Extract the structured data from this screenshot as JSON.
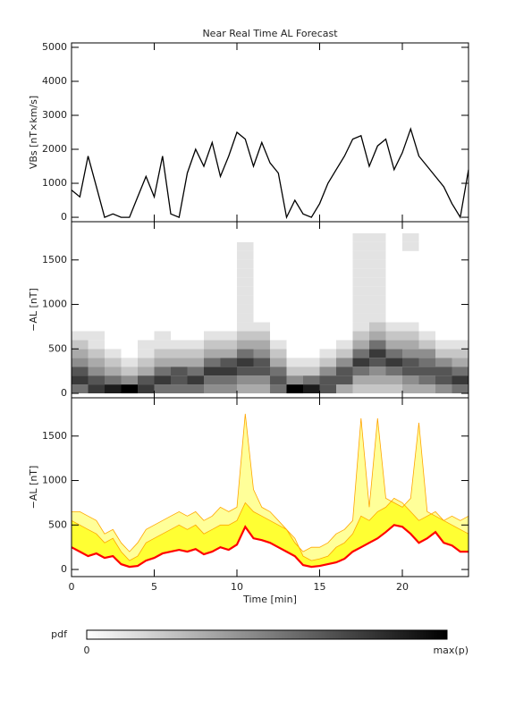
{
  "chart_data": [
    {
      "type": "line",
      "title": "Near Real Time AL Forecast",
      "ylabel": "VBs [nT×km/s]",
      "xlim": [
        0,
        24
      ],
      "xticks": [
        0,
        5,
        10,
        15,
        20
      ],
      "ylim": [
        -130,
        5130
      ],
      "yticks": [
        0,
        1000,
        2000,
        3000,
        4000,
        5000
      ],
      "color": "#000000",
      "x": [
        0,
        0.5,
        1,
        1.5,
        2,
        2.5,
        3,
        3.5,
        4,
        4.5,
        5,
        5.5,
        6,
        6.5,
        7,
        7.5,
        8,
        8.5,
        9,
        9.5,
        10,
        10.5,
        11,
        11.5,
        12,
        12.5,
        13,
        13.5,
        14,
        14.5,
        15,
        15.5,
        16,
        16.5,
        17,
        17.5,
        18,
        18.5,
        19,
        19.5,
        20,
        20.5,
        21,
        21.5,
        22,
        22.5,
        23,
        23.5,
        24
      ],
      "values": [
        800,
        600,
        1800,
        900,
        0,
        100,
        0,
        0,
        600,
        1200,
        600,
        1800,
        100,
        0,
        1300,
        2000,
        1500,
        2200,
        1200,
        1800,
        2500,
        2300,
        1500,
        2200,
        1600,
        1300,
        0,
        500,
        100,
        0,
        400,
        1000,
        1400,
        1800,
        2300,
        2400,
        1500,
        2100,
        2300,
        1400,
        1900,
        2600,
        1800,
        1500,
        1200,
        900,
        400,
        0,
        1400
      ]
    },
    {
      "type": "heatmap",
      "ylabel": "−AL [nT]",
      "xlim": [
        0,
        24
      ],
      "xticks": [
        0,
        5,
        10,
        15,
        20
      ],
      "ylim": [
        -50,
        1930
      ],
      "yticks": [
        0,
        500,
        1000,
        1500
      ],
      "x_bins": [
        0,
        1,
        2,
        3,
        4,
        5,
        6,
        7,
        8,
        9,
        10,
        11,
        12,
        13,
        14,
        15,
        16,
        17,
        18,
        19,
        20,
        21,
        22,
        23,
        24
      ],
      "y_bins": [
        0,
        100,
        200,
        300,
        400,
        500,
        600,
        700,
        800,
        900,
        1000,
        1100,
        1200,
        1300,
        1400,
        1500,
        1600,
        1700,
        1800
      ],
      "z": [
        [
          0.5,
          0.7,
          0.6,
          0.4,
          0.3,
          0.2,
          0.1,
          0,
          0,
          0,
          0,
          0,
          0,
          0,
          0,
          0,
          0,
          0
        ],
        [
          0.7,
          0.6,
          0.4,
          0.3,
          0.2,
          0.1,
          0.1,
          0,
          0,
          0,
          0,
          0,
          0,
          0,
          0,
          0,
          0,
          0
        ],
        [
          0.8,
          0.5,
          0.3,
          0.2,
          0.1,
          0,
          0,
          0,
          0,
          0,
          0,
          0,
          0,
          0,
          0,
          0,
          0,
          0
        ],
        [
          0.9,
          0.4,
          0.2,
          0.1,
          0,
          0,
          0,
          0,
          0,
          0,
          0,
          0,
          0,
          0,
          0,
          0,
          0,
          0
        ],
        [
          0.7,
          0.6,
          0.3,
          0.2,
          0.1,
          0.1,
          0,
          0,
          0,
          0,
          0,
          0,
          0,
          0,
          0,
          0,
          0,
          0
        ],
        [
          0.5,
          0.7,
          0.5,
          0.3,
          0.2,
          0.1,
          0.1,
          0,
          0,
          0,
          0,
          0,
          0,
          0,
          0,
          0,
          0,
          0
        ],
        [
          0.5,
          0.6,
          0.6,
          0.3,
          0.2,
          0.1,
          0,
          0,
          0,
          0,
          0,
          0,
          0,
          0,
          0,
          0,
          0,
          0
        ],
        [
          0.5,
          0.7,
          0.5,
          0.3,
          0.2,
          0.1,
          0,
          0,
          0,
          0,
          0,
          0,
          0,
          0,
          0,
          0,
          0,
          0
        ],
        [
          0.4,
          0.5,
          0.7,
          0.5,
          0.3,
          0.2,
          0.1,
          0,
          0,
          0,
          0,
          0,
          0,
          0,
          0,
          0,
          0,
          0
        ],
        [
          0.4,
          0.5,
          0.7,
          0.6,
          0.3,
          0.2,
          0.1,
          0,
          0,
          0,
          0,
          0,
          0,
          0,
          0,
          0,
          0,
          0
        ],
        [
          0.3,
          0.4,
          0.6,
          0.7,
          0.5,
          0.3,
          0.2,
          0.1,
          0.1,
          0.1,
          0.1,
          0.1,
          0.1,
          0.1,
          0.1,
          0.1,
          0.1,
          0
        ],
        [
          0.3,
          0.4,
          0.6,
          0.6,
          0.4,
          0.3,
          0.2,
          0.1,
          0,
          0,
          0,
          0,
          0,
          0,
          0,
          0,
          0,
          0
        ],
        [
          0.5,
          0.6,
          0.5,
          0.3,
          0.2,
          0.1,
          0,
          0,
          0,
          0,
          0,
          0,
          0,
          0,
          0,
          0,
          0,
          0
        ],
        [
          0.9,
          0.4,
          0.2,
          0.1,
          0,
          0,
          0,
          0,
          0,
          0,
          0,
          0,
          0,
          0,
          0,
          0,
          0,
          0
        ],
        [
          0.8,
          0.5,
          0.2,
          0.1,
          0,
          0,
          0,
          0,
          0,
          0,
          0,
          0,
          0,
          0,
          0,
          0,
          0,
          0
        ],
        [
          0.6,
          0.6,
          0.4,
          0.2,
          0.1,
          0,
          0,
          0,
          0,
          0,
          0,
          0,
          0,
          0,
          0,
          0,
          0,
          0
        ],
        [
          0.3,
          0.6,
          0.6,
          0.4,
          0.2,
          0.1,
          0,
          0,
          0,
          0,
          0,
          0,
          0,
          0,
          0,
          0,
          0,
          0
        ],
        [
          0.2,
          0.3,
          0.5,
          0.7,
          0.5,
          0.3,
          0.2,
          0.1,
          0.1,
          0.1,
          0.1,
          0.1,
          0.1,
          0.1,
          0.1,
          0.1,
          0.1,
          0.1
        ],
        [
          0.2,
          0.3,
          0.4,
          0.6,
          0.7,
          0.5,
          0.3,
          0.2,
          0.1,
          0.1,
          0.1,
          0.1,
          0.1,
          0.1,
          0.1,
          0.1,
          0.1,
          0.1
        ],
        [
          0.2,
          0.3,
          0.5,
          0.7,
          0.5,
          0.3,
          0.2,
          0.1,
          0,
          0,
          0,
          0,
          0,
          0,
          0,
          0,
          0,
          0
        ],
        [
          0.3,
          0.4,
          0.6,
          0.6,
          0.4,
          0.3,
          0.2,
          0.1,
          0,
          0,
          0,
          0,
          0,
          0,
          0,
          0,
          0.1,
          0.1
        ],
        [
          0.3,
          0.5,
          0.6,
          0.5,
          0.4,
          0.2,
          0.1,
          0,
          0,
          0,
          0,
          0,
          0,
          0,
          0,
          0,
          0,
          0
        ],
        [
          0.4,
          0.6,
          0.6,
          0.4,
          0.2,
          0.1,
          0,
          0,
          0,
          0,
          0,
          0,
          0,
          0,
          0,
          0,
          0,
          0
        ],
        [
          0.5,
          0.7,
          0.5,
          0.3,
          0.2,
          0.1,
          0,
          0,
          0,
          0,
          0,
          0,
          0,
          0,
          0,
          0,
          0,
          0
        ]
      ]
    },
    {
      "type": "band",
      "ylabel": "−AL [nT]",
      "xlabel": "Time [min]",
      "xlim": [
        0,
        24
      ],
      "xticks": [
        0,
        5,
        10,
        15,
        20
      ],
      "ylim": [
        -80,
        1930
      ],
      "yticks": [
        0,
        500,
        1000,
        1500
      ],
      "x": [
        0,
        0.5,
        1,
        1.5,
        2,
        2.5,
        3,
        3.5,
        4,
        4.5,
        5,
        5.5,
        6,
        6.5,
        7,
        7.5,
        8,
        8.5,
        9,
        9.5,
        10,
        10.5,
        11,
        11.5,
        12,
        12.5,
        13,
        13.5,
        14,
        14.5,
        15,
        15.5,
        16,
        16.5,
        17,
        17.5,
        18,
        18.5,
        19,
        19.5,
        20,
        20.5,
        21,
        21.5,
        22,
        22.5,
        23,
        23.5,
        24
      ],
      "color": "#ff0000",
      "values": [
        250,
        200,
        150,
        180,
        130,
        150,
        60,
        30,
        40,
        100,
        130,
        180,
        200,
        220,
        200,
        230,
        170,
        200,
        250,
        220,
        280,
        480,
        350,
        330,
        300,
        250,
        200,
        150,
        50,
        30,
        40,
        60,
        80,
        120,
        200,
        250,
        300,
        350,
        420,
        500,
        480,
        400,
        300,
        350,
        420,
        300,
        270,
        200,
        200
      ],
      "bands": [
        {
          "color": "#ffff33",
          "values": [
            550,
            500,
            450,
            400,
            300,
            350,
            200,
            100,
            150,
            300,
            350,
            400,
            450,
            500,
            450,
            500,
            400,
            450,
            500,
            500,
            550,
            750,
            650,
            600,
            550,
            500,
            450,
            350,
            150,
            100,
            120,
            150,
            250,
            300,
            400,
            600,
            550,
            650,
            700,
            800,
            750,
            650,
            550,
            600,
            650,
            550,
            500,
            450,
            400
          ]
        },
        {
          "color": "#ffff99",
          "edge": "#ffa500",
          "values": [
            650,
            650,
            600,
            550,
            400,
            450,
            300,
            200,
            300,
            450,
            500,
            550,
            600,
            650,
            600,
            650,
            550,
            600,
            700,
            650,
            700,
            1750,
            900,
            700,
            650,
            550,
            450,
            300,
            200,
            250,
            250,
            300,
            400,
            450,
            550,
            1700,
            700,
            1700,
            800,
            750,
            700,
            800,
            1650,
            650,
            600,
            550,
            600,
            550,
            600
          ]
        }
      ]
    }
  ],
  "colorbar": {
    "label": "pdf",
    "min_label": "0",
    "max_label": "max(p)"
  }
}
